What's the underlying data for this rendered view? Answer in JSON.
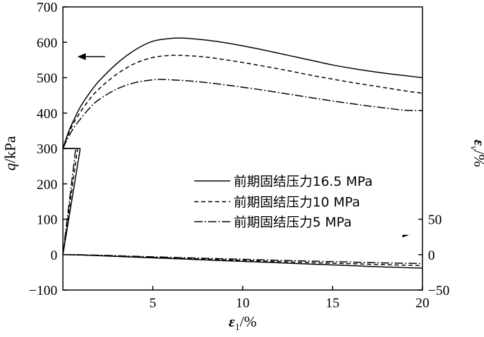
{
  "chart_data": {
    "type": "line",
    "xlabel": {
      "main": "ε",
      "sub": "1",
      "rest": "/%"
    },
    "ylabel_left": {
      "main": "q",
      "rest": "/kPa"
    },
    "ylabel_right": {
      "main": "ε",
      "sub": "v",
      "rest": "/%"
    },
    "xlim": [
      0,
      20
    ],
    "ylim_left": [
      -100,
      700
    ],
    "ylim_right_labels": [
      {
        "value": -50,
        "label": "−50"
      },
      {
        "value": 0,
        "label": "0"
      },
      {
        "value": 50,
        "label": "50"
      }
    ],
    "x_ticks": [
      {
        "value": 5,
        "label": "5"
      },
      {
        "value": 10,
        "label": "10"
      },
      {
        "value": 15,
        "label": "15"
      },
      {
        "value": 20,
        "label": "20"
      }
    ],
    "y_ticks_left": [
      {
        "value": -100,
        "label": "−100"
      },
      {
        "value": 0,
        "label": "0"
      },
      {
        "value": 100,
        "label": "100"
      },
      {
        "value": 200,
        "label": "200"
      },
      {
        "value": 300,
        "label": "300"
      },
      {
        "value": 400,
        "label": "400"
      },
      {
        "value": 500,
        "label": "500"
      },
      {
        "value": 600,
        "label": "600"
      },
      {
        "value": 700,
        "label": "700"
      }
    ],
    "grid": false,
    "legend_position": "center-right",
    "series": [
      {
        "name": "前期固结压力16.5 MPa",
        "dash": "solid",
        "q": {
          "x": [
            0,
            0.3,
            0.6,
            1,
            1.5,
            2,
            3,
            4,
            5,
            6,
            6.5,
            7,
            8,
            9,
            10,
            11,
            12,
            13,
            14,
            15,
            16,
            17,
            18,
            19,
            20
          ],
          "y": [
            300,
            345,
            380,
            420,
            458,
            490,
            540,
            578,
            603,
            611,
            612,
            611,
            606,
            599,
            590,
            580,
            569,
            558,
            547,
            536,
            527,
            519,
            512,
            506,
            500
          ]
        },
        "ev": {
          "x": [
            0,
            0.5,
            1,
            2,
            4,
            6,
            8,
            10,
            12,
            14,
            16,
            18,
            20
          ],
          "y": [
            0,
            -0.2,
            -0.5,
            -1.5,
            -3.5,
            -5.5,
            -7.5,
            -9.5,
            -11.5,
            -13.5,
            -15.5,
            -17.5,
            -19
          ]
        }
      },
      {
        "name": "前期固结压力10 MPa",
        "dash": "dashed",
        "q": {
          "x": [
            0,
            0.3,
            0.6,
            1,
            1.5,
            2,
            3,
            4,
            5,
            6,
            7,
            8,
            9,
            10,
            11,
            12,
            13,
            14,
            15,
            16,
            17,
            18,
            19,
            20
          ],
          "y": [
            300,
            340,
            372,
            405,
            440,
            468,
            510,
            540,
            557,
            563,
            562,
            558,
            551,
            543,
            534,
            525,
            515,
            505,
            496,
            487,
            479,
            471,
            463,
            456
          ]
        },
        "ev": {
          "x": [
            0,
            0.5,
            1,
            2,
            4,
            6,
            8,
            10,
            12,
            14,
            16,
            18,
            20
          ],
          "y": [
            0,
            -0.2,
            -0.4,
            -1.3,
            -3,
            -4.7,
            -6.4,
            -8.1,
            -9.8,
            -11.4,
            -12.8,
            -14.2,
            -15.5
          ]
        }
      },
      {
        "name": "前期固结压力5 MPa",
        "dash": "dashdot",
        "q": {
          "x": [
            0,
            0.3,
            0.6,
            1,
            1.5,
            2,
            3,
            4,
            5,
            5.5,
            6,
            7,
            8,
            9,
            10,
            11,
            12,
            13,
            14,
            15,
            16,
            17,
            18,
            19,
            20
          ],
          "y": [
            300,
            332,
            358,
            385,
            415,
            438,
            468,
            486,
            494,
            495,
            494,
            491,
            486,
            480,
            473,
            466,
            458,
            450,
            442,
            434,
            427,
            420,
            414,
            408,
            407
          ]
        },
        "ev": {
          "x": [
            0,
            0.5,
            1,
            2,
            4,
            6,
            8,
            10,
            12,
            14,
            16,
            18,
            20
          ],
          "y": [
            0,
            0.1,
            -0.1,
            -0.8,
            -2.3,
            -3.8,
            -5.2,
            -6.6,
            -8,
            -9.3,
            -10.5,
            -11.7,
            -12.5
          ]
        }
      }
    ],
    "initial_loading": [
      {
        "dash": "solid",
        "pts": [
          [
            0,
            300
          ],
          [
            0.95,
            300
          ],
          [
            0.95,
            295
          ],
          [
            0,
            0
          ]
        ]
      },
      {
        "dash": "dashed",
        "pts": [
          [
            0,
            300
          ],
          [
            0.8,
            300
          ],
          [
            0.8,
            295
          ],
          [
            0,
            0
          ]
        ]
      },
      {
        "dash": "dashdot",
        "pts": [
          [
            0,
            300
          ],
          [
            0.7,
            300
          ],
          [
            0.7,
            295
          ],
          [
            0,
            0
          ]
        ]
      }
    ],
    "annotations": [
      {
        "type": "arrow",
        "direction": "left",
        "meaning": "q curves refer to left axis"
      },
      {
        "type": "arrow",
        "direction": "right",
        "meaning": "εv curves refer to right axis"
      }
    ]
  }
}
